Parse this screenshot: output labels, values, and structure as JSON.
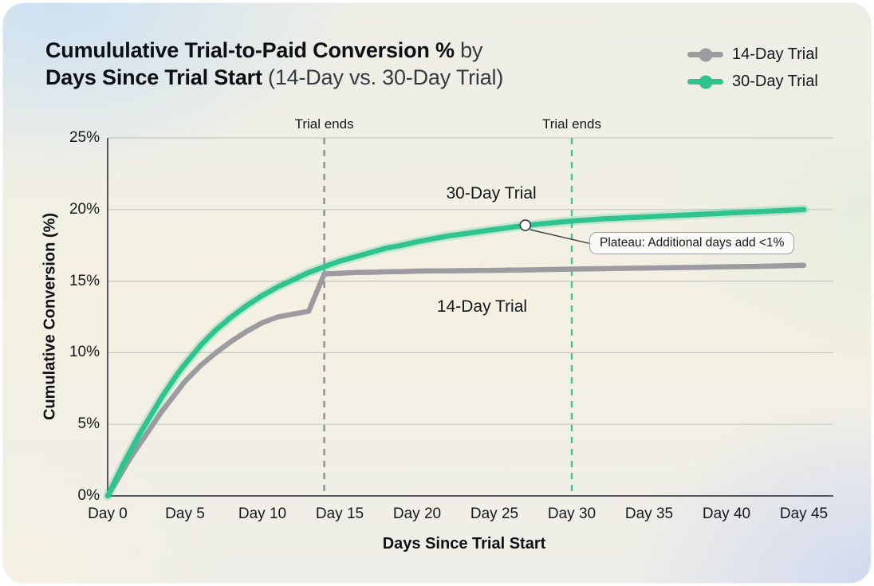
{
  "title": {
    "line1_bold": "Cumululative Trial-to-Paid Conversion %",
    "line1_rest": " by",
    "line2_bold": "Days Since Trial Start",
    "line2_rest": " (14-Day vs. 30-Day Trial)"
  },
  "legend": {
    "items": [
      {
        "label": "14-Day Trial",
        "color": "#9b9ba1"
      },
      {
        "label": "30-Day Trial",
        "color": "#2fc48e"
      }
    ]
  },
  "chart_data": {
    "type": "line",
    "title": "Cumululative Trial-to-Paid Conversion % by Days Since Trial Start (14-Day vs. 30-Day Trial)",
    "xlabel": "Days Since Trial Start",
    "ylabel": "Cumulative Conversion (%)",
    "xlim": [
      0,
      47
    ],
    "ylim": [
      0,
      25
    ],
    "grid": "horizontal",
    "legend_position": "top-right",
    "x_tick_values": [
      0,
      5,
      10,
      15,
      20,
      25,
      30,
      35,
      40,
      45
    ],
    "x_tick_labels": [
      "Day 0",
      "Day 5",
      "Day 10",
      "Day 15",
      "Day 20",
      "Day 25",
      "Day 30",
      "Day 35",
      "Day 40",
      "Day 45"
    ],
    "y_tick_values": [
      0,
      5,
      10,
      15,
      20,
      25
    ],
    "y_tick_labels": [
      "0%",
      "5%",
      "10%",
      "15%",
      "20%",
      "25%"
    ],
    "x": [
      0,
      0.5,
      1,
      1.5,
      2,
      2.5,
      3,
      3.5,
      4,
      4.5,
      5,
      6,
      7,
      8,
      9,
      10,
      11,
      12,
      13,
      14,
      15,
      16,
      17,
      18,
      19,
      20,
      21,
      22,
      23,
      24,
      25,
      26,
      27,
      28,
      29,
      30,
      32,
      34,
      36,
      38,
      40,
      42,
      45
    ],
    "series": [
      {
        "name": "14-Day Trial",
        "color": "#9b9ba1",
        "values": [
          0,
          0.9,
          1.8,
          2.7,
          3.5,
          4.3,
          5.1,
          5.9,
          6.6,
          7.3,
          8.0,
          9.1,
          10.0,
          10.8,
          11.5,
          12.1,
          12.5,
          12.7,
          12.9,
          15.5,
          15.55,
          15.6,
          15.62,
          15.65,
          15.67,
          15.7,
          15.71,
          15.72,
          15.73,
          15.74,
          15.75,
          15.77,
          15.78,
          15.8,
          15.82,
          15.84,
          15.87,
          15.9,
          15.93,
          15.96,
          16.0,
          16.03,
          16.1
        ]
      },
      {
        "name": "30-Day Trial",
        "color": "#2fc48e",
        "values": [
          0,
          1.1,
          2.2,
          3.2,
          4.2,
          5.1,
          6.0,
          6.9,
          7.7,
          8.5,
          9.2,
          10.5,
          11.6,
          12.5,
          13.3,
          14.0,
          14.6,
          15.1,
          15.6,
          16.0,
          16.4,
          16.7,
          17.0,
          17.3,
          17.5,
          17.75,
          17.95,
          18.15,
          18.3,
          18.45,
          18.6,
          18.75,
          18.9,
          19.0,
          19.1,
          19.2,
          19.35,
          19.45,
          19.55,
          19.65,
          19.75,
          19.85,
          20.0
        ]
      }
    ],
    "vlines": [
      {
        "day": 14,
        "label": "Trial ends",
        "color": "#8a8f94"
      },
      {
        "day": 30,
        "label": "Trial ends",
        "color": "#3bc795"
      }
    ],
    "series_labels": [
      {
        "text": "30-Day Trial",
        "day": 24.8,
        "value": 21.1
      },
      {
        "text": "14-Day Trial",
        "day": 24.2,
        "value": 13.2
      }
    ],
    "annotation": {
      "day": 27,
      "value": 18.9,
      "text": "Plateau: Additional days add <1%"
    }
  },
  "colors": {
    "axis": "#54585d",
    "grid": "#c6c8c0",
    "tick_text": "#15181c",
    "marker_fill": "#fdfdfb",
    "marker_stroke": "#33383c"
  }
}
